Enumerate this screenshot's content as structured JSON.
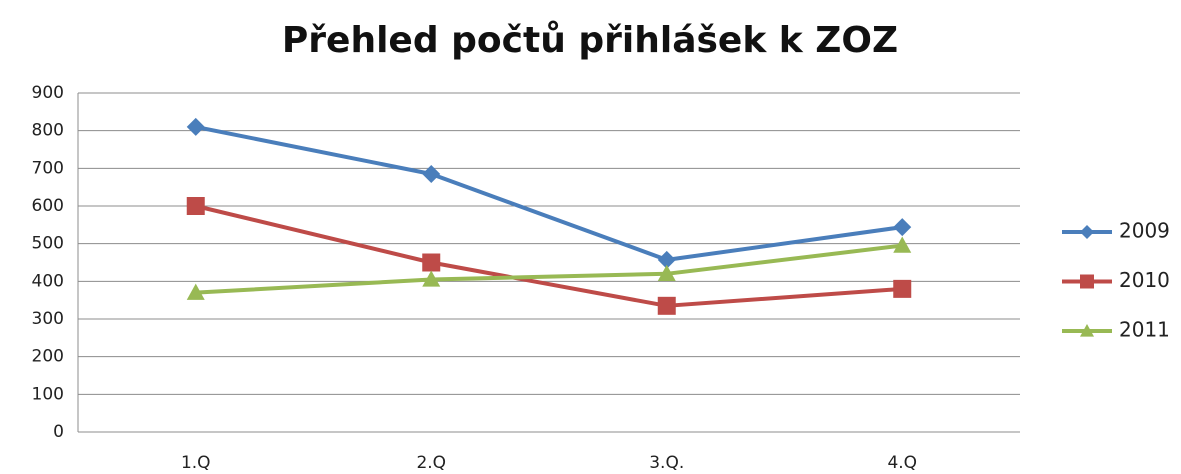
{
  "chart_data": {
    "type": "line",
    "title": "Přehled počtů přihlášek k ZOZ",
    "categories": [
      "1.Q",
      "2.Q",
      "3.Q.",
      "4.Q"
    ],
    "series": [
      {
        "name": "2009",
        "color": "#4a7ebb",
        "marker": "diamond",
        "values": [
          810,
          685,
          457,
          544
        ]
      },
      {
        "name": "2010",
        "color": "#be4b48",
        "marker": "square",
        "values": [
          600,
          450,
          335,
          380
        ]
      },
      {
        "name": "2011",
        "color": "#98b954",
        "marker": "triangle",
        "values": [
          370,
          405,
          420,
          495
        ]
      }
    ],
    "ylim": [
      0,
      900
    ],
    "yticks": [
      0,
      100,
      200,
      300,
      400,
      500,
      600,
      700,
      800,
      900
    ],
    "grid": true,
    "legend": "right"
  }
}
